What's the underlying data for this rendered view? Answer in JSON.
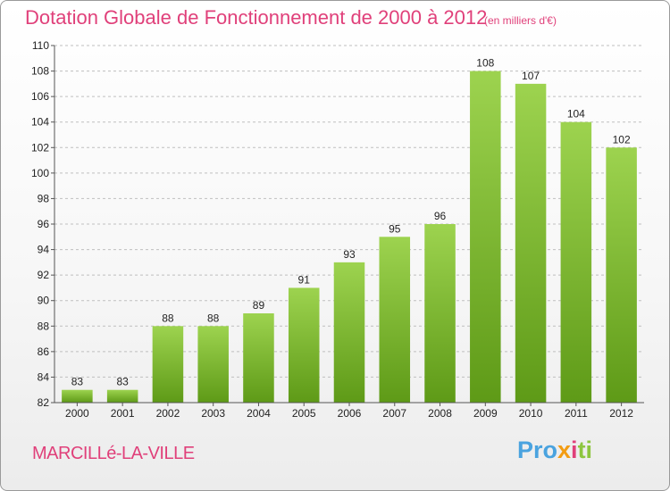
{
  "header": {
    "title": "Dotation Globale de Fonctionnement de 2000 à 2012",
    "subtitle": "(en milliers d'€)"
  },
  "footer": {
    "place": "MARCILLé-LA-VILLE",
    "logo": [
      "Pro",
      "x",
      "i",
      "ti"
    ]
  },
  "colors": {
    "title": "#e0407a",
    "bar_top": "#9dd34f",
    "bar_bottom": "#5e9a17",
    "grid": "#bfbfbf"
  },
  "chart_data": {
    "type": "bar",
    "categories": [
      "2000",
      "2001",
      "2002",
      "2003",
      "2004",
      "2005",
      "2006",
      "2007",
      "2008",
      "2009",
      "2010",
      "2011",
      "2012"
    ],
    "values": [
      83,
      83,
      88,
      88,
      89,
      91,
      93,
      95,
      96,
      108,
      107,
      104,
      102
    ],
    "title": "Dotation Globale de Fonctionnement de 2000 à 2012",
    "subtitle": "(en milliers d'€)",
    "xlabel": "",
    "ylabel": "",
    "ylim": [
      82,
      110
    ],
    "yticks": [
      82,
      84,
      86,
      88,
      90,
      92,
      94,
      96,
      98,
      100,
      102,
      104,
      106,
      108,
      110
    ],
    "grid": true,
    "legend": "none"
  }
}
